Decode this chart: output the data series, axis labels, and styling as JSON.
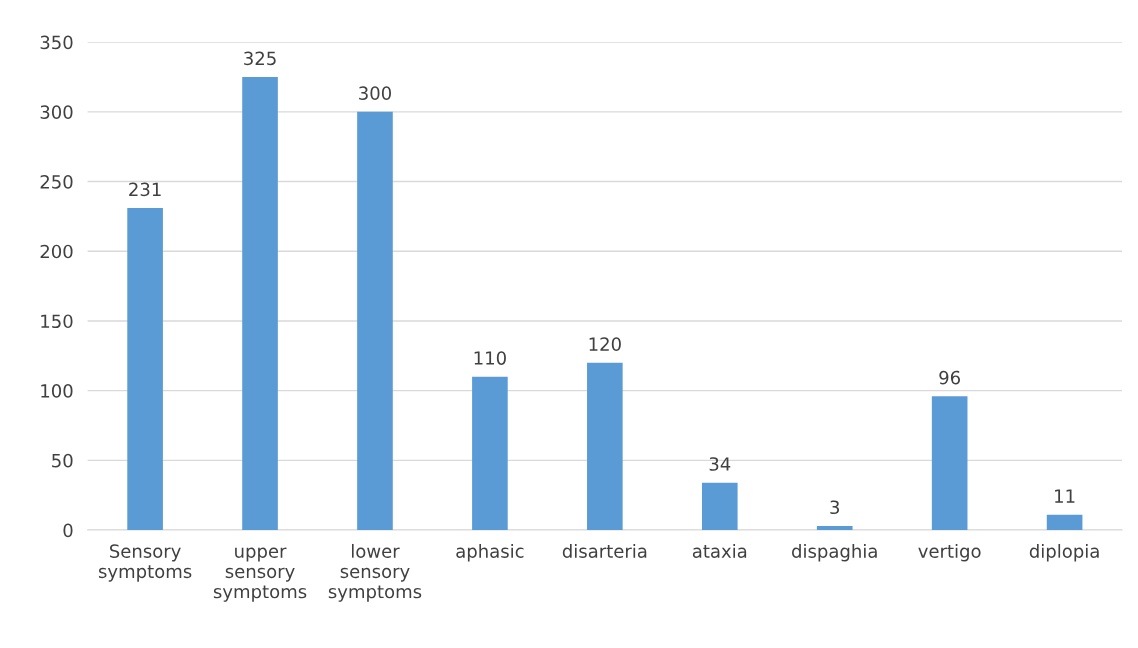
{
  "chart_data": {
    "type": "bar",
    "categories": [
      "Sensory symptoms",
      "upper sensory symptoms",
      "lower sensory symptoms",
      "aphasic",
      "disarteria",
      "ataxia",
      "dispaghia",
      "vertigo",
      "diplopia"
    ],
    "values": [
      231,
      325,
      300,
      110,
      120,
      34,
      3,
      96,
      11
    ],
    "color": "#5b9bd5",
    "ylim": [
      0,
      350
    ],
    "yticks": [
      0,
      50,
      100,
      150,
      200,
      250,
      300,
      350
    ],
    "grid": "y",
    "data_labels": true
  }
}
